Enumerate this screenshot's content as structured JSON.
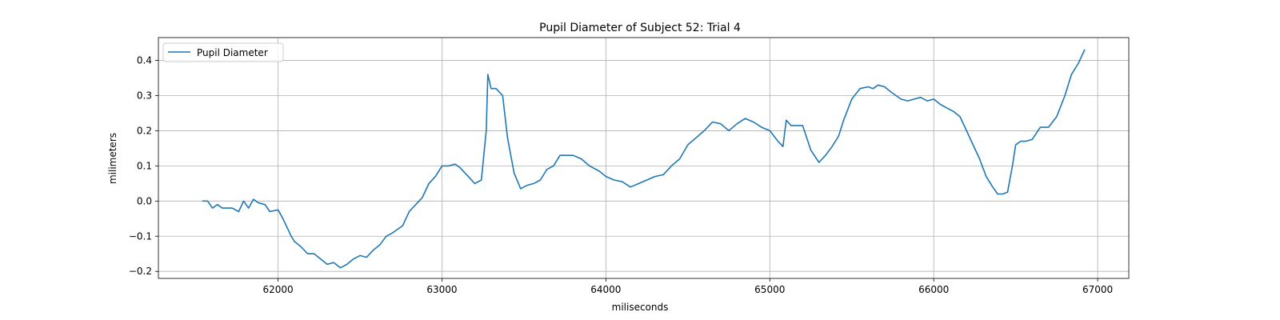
{
  "chart_data": {
    "type": "line",
    "title": "Pupil Diameter of Subject 52: Trial 4",
    "xlabel": "miliseconds",
    "ylabel": "milimeters",
    "xlim": [
      61270,
      67190
    ],
    "ylim": [
      -0.22,
      0.465
    ],
    "x_ticks": [
      62000,
      63000,
      64000,
      65000,
      66000,
      67000
    ],
    "y_ticks": [
      -0.2,
      -0.1,
      0.0,
      0.1,
      0.2,
      0.3,
      0.4
    ],
    "x_tick_labels": [
      "62000",
      "63000",
      "64000",
      "65000",
      "66000",
      "67000"
    ],
    "y_tick_labels": [
      "−0.2",
      "−0.1",
      "0.0",
      "0.1",
      "0.2",
      "0.3",
      "0.4"
    ],
    "grid": true,
    "legend": {
      "position": "top-left",
      "entries": [
        "Pupil Diameter"
      ]
    },
    "series": [
      {
        "name": "Pupil Diameter",
        "color": "#1f77b4",
        "x": [
          61540,
          61570,
          61600,
          61630,
          61660,
          61690,
          61720,
          61760,
          61790,
          61820,
          61850,
          61880,
          61920,
          61950,
          62000,
          62030,
          62060,
          62080,
          62100,
          62140,
          62180,
          62220,
          62260,
          62300,
          62340,
          62380,
          62420,
          62460,
          62500,
          62540,
          62580,
          62620,
          62660,
          62700,
          62760,
          62800,
          62840,
          62880,
          62920,
          62960,
          63000,
          63040,
          63080,
          63110,
          63160,
          63200,
          63240,
          63270,
          63280,
          63300,
          63330,
          63370,
          63400,
          63440,
          63480,
          63520,
          63560,
          63600,
          63640,
          63680,
          63720,
          63760,
          63800,
          63850,
          63900,
          63960,
          64000,
          64050,
          64100,
          64150,
          64200,
          64250,
          64300,
          64350,
          64400,
          64450,
          64500,
          64550,
          64600,
          64650,
          64700,
          64750,
          64800,
          64850,
          64900,
          64950,
          65000,
          65050,
          65080,
          65100,
          65130,
          65200,
          65250,
          65300,
          65340,
          65380,
          65420,
          65450,
          65500,
          65550,
          65600,
          65630,
          65660,
          65700,
          65740,
          65800,
          65840,
          65880,
          65920,
          65960,
          66000,
          66040,
          66080,
          66120,
          66160,
          66200,
          66240,
          66280,
          66320,
          66360,
          66390,
          66420,
          66450,
          66480,
          66500,
          66530,
          66560,
          66600,
          66650,
          66700,
          66750,
          66800,
          66840,
          66880,
          66920
        ],
        "y": [
          0.0,
          0.0,
          -0.02,
          -0.01,
          -0.02,
          -0.02,
          -0.02,
          -0.03,
          0.0,
          -0.02,
          0.005,
          -0.005,
          -0.01,
          -0.03,
          -0.025,
          -0.05,
          -0.08,
          -0.1,
          -0.115,
          -0.13,
          -0.15,
          -0.15,
          -0.165,
          -0.18,
          -0.175,
          -0.19,
          -0.18,
          -0.165,
          -0.155,
          -0.16,
          -0.14,
          -0.125,
          -0.1,
          -0.09,
          -0.07,
          -0.03,
          -0.01,
          0.01,
          0.05,
          0.07,
          0.1,
          0.1,
          0.105,
          0.095,
          0.07,
          0.05,
          0.06,
          0.2,
          0.36,
          0.32,
          0.32,
          0.3,
          0.18,
          0.08,
          0.035,
          0.045,
          0.05,
          0.06,
          0.09,
          0.1,
          0.13,
          0.13,
          0.13,
          0.12,
          0.1,
          0.085,
          0.07,
          0.06,
          0.055,
          0.04,
          0.05,
          0.06,
          0.07,
          0.075,
          0.1,
          0.12,
          0.16,
          0.18,
          0.2,
          0.225,
          0.22,
          0.2,
          0.22,
          0.235,
          0.225,
          0.21,
          0.2,
          0.17,
          0.155,
          0.23,
          0.215,
          0.215,
          0.145,
          0.11,
          0.13,
          0.155,
          0.185,
          0.23,
          0.29,
          0.32,
          0.325,
          0.32,
          0.33,
          0.325,
          0.31,
          0.29,
          0.285,
          0.29,
          0.295,
          0.285,
          0.29,
          0.275,
          0.265,
          0.255,
          0.24,
          0.2,
          0.16,
          0.12,
          0.07,
          0.04,
          0.02,
          0.02,
          0.025,
          0.1,
          0.16,
          0.17,
          0.17,
          0.175,
          0.21,
          0.21,
          0.24,
          0.3,
          0.36,
          0.39,
          0.43
        ]
      }
    ]
  }
}
